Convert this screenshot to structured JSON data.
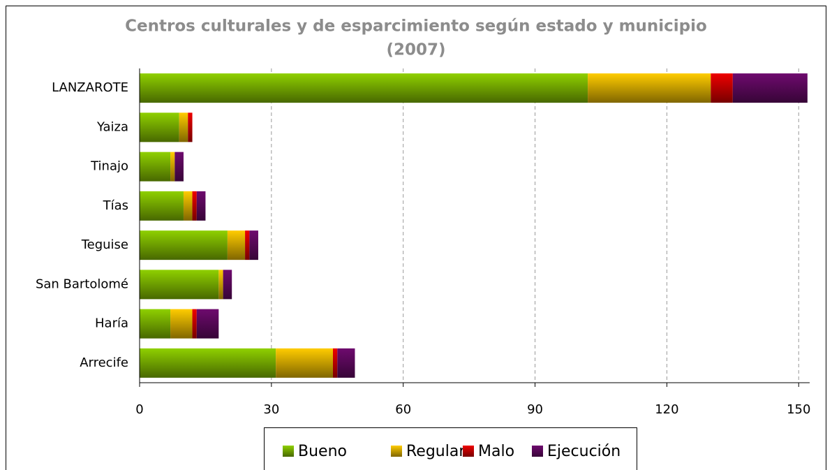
{
  "chart_data": {
    "type": "stacked-bar-horizontal",
    "title": [
      "Centros culturales y de esparcimiento según estado y municipio",
      "(2007)"
    ],
    "categories": [
      "LANZAROTE",
      "Yaiza",
      "Tinajo",
      "Tías",
      "Teguise",
      "San Bartolomé",
      "Haría",
      "Arrecife"
    ],
    "series": [
      {
        "name": "Bueno",
        "color": "#8fd000",
        "values": [
          102,
          9,
          7,
          10,
          20,
          18,
          7,
          31
        ]
      },
      {
        "name": "Regular",
        "color": "#ffcc00",
        "values": [
          28,
          2,
          1,
          2,
          4,
          1,
          5,
          13
        ]
      },
      {
        "name": "Malo",
        "color": "#ee0000",
        "values": [
          5,
          1,
          0,
          1,
          1,
          0,
          1,
          1
        ]
      },
      {
        "name": "Ejecución",
        "color": "#6e0a6e",
        "values": [
          17,
          0,
          2,
          2,
          2,
          2,
          5,
          4
        ]
      }
    ],
    "xlim": [
      0,
      152.5
    ],
    "xticks": [
      0,
      30,
      60,
      90,
      120,
      150
    ],
    "grid": true,
    "legend": "bottom"
  }
}
